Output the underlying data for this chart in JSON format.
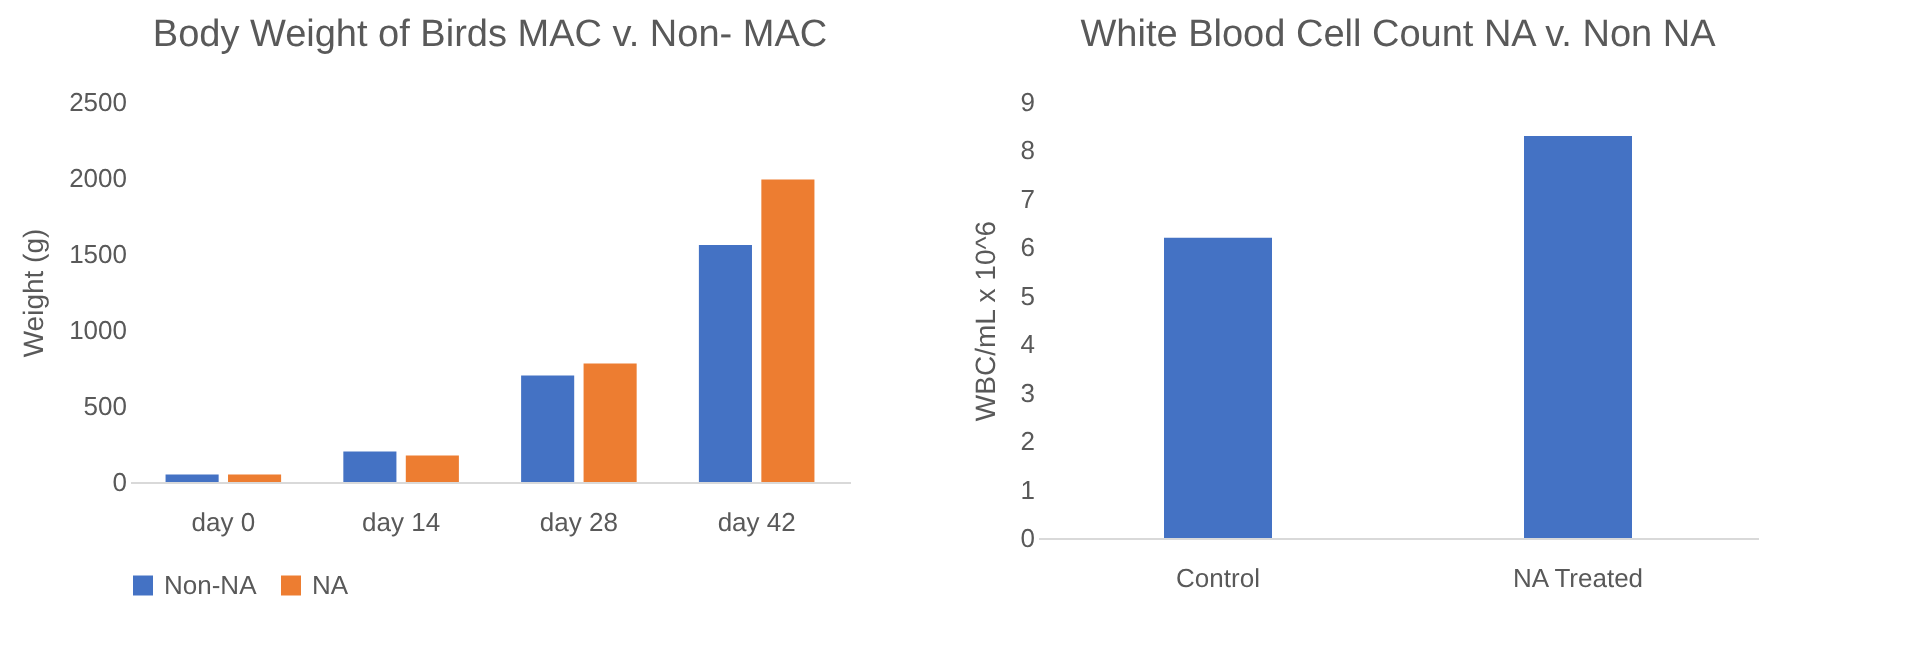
{
  "chart_data": [
    {
      "type": "bar",
      "title": "Body Weight of Birds MAC v. Non- MAC",
      "ylabel": "Weight (g)",
      "categories": [
        "day 0",
        "day 14",
        "day 28",
        "day 42"
      ],
      "series": [
        {
          "name": "Non-NA",
          "color": "#4472c4",
          "values": [
            50,
            200,
            700,
            1560
          ]
        },
        {
          "name": "NA",
          "color": "#ed7d31",
          "values": [
            50,
            175,
            780,
            1990
          ]
        }
      ],
      "ylim": [
        0,
        2500
      ],
      "yticks": [
        0,
        500,
        1000,
        1500,
        2000,
        2500
      ],
      "grid": false,
      "legend": "bottom"
    },
    {
      "type": "bar",
      "title": "White Blood Cell Count NA v. Non NA",
      "ylabel": "WBC/mL x 10^6",
      "categories": [
        "Control",
        "NA Treated"
      ],
      "values": [
        6.2,
        8.3
      ],
      "color": "#4472c4",
      "ylim": [
        0,
        9
      ],
      "yticks": [
        0,
        1,
        2,
        3,
        4,
        5,
        6,
        7,
        8,
        9
      ],
      "grid": false
    }
  ]
}
